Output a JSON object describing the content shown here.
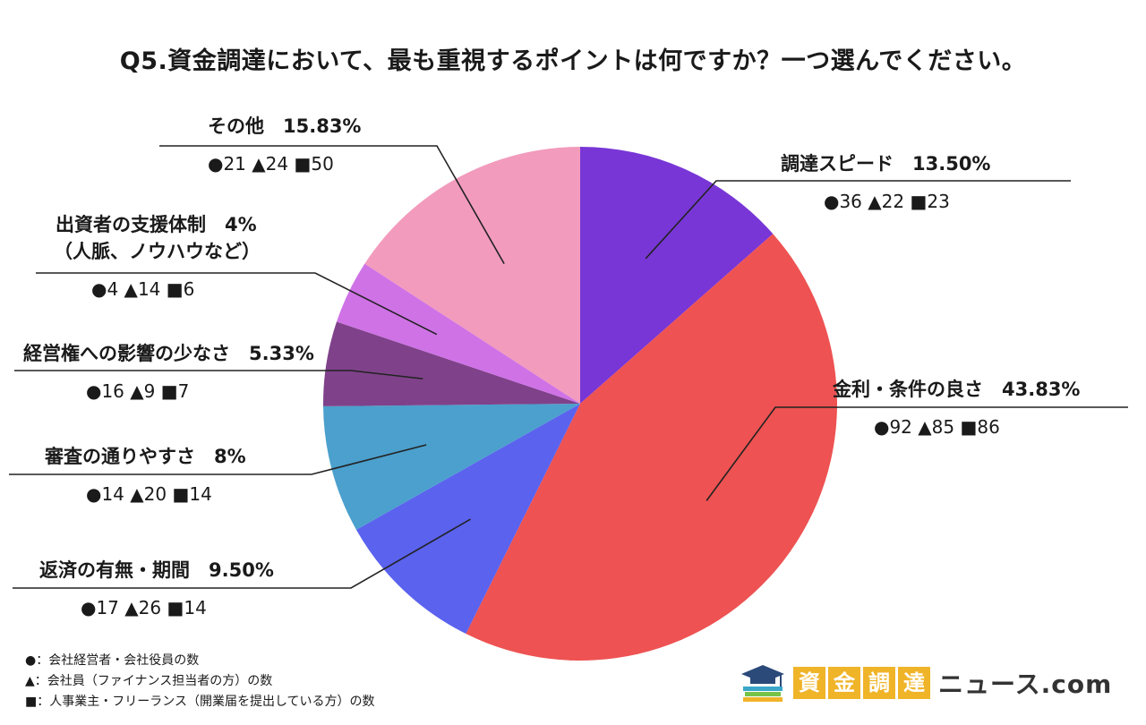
{
  "chart_data": {
    "type": "pie",
    "title": "Q5.資金調達において、最も重視するポイントは何ですか？一つ選んでください。",
    "start_angle": "12 o'clock",
    "direction": "clockwise",
    "slices": [
      {
        "label": "調達スピード",
        "percent_text": "13.50%",
        "value": 13.5,
        "circle": "36",
        "triangle": "22",
        "square": "23",
        "color": "#7836d6"
      },
      {
        "label": "金利・条件の良さ",
        "percent_text": "43.83%",
        "value": 43.83,
        "circle": "92",
        "triangle": "85",
        "square": "86",
        "color": "#ee5252"
      },
      {
        "label": "返済の有無・期間",
        "percent_text": "9.50%",
        "value": 9.5,
        "circle": "17",
        "triangle": "26",
        "square": "14",
        "color": "#5a62ee"
      },
      {
        "label": "審査の通りやすさ",
        "percent_text": "8%",
        "value": 8,
        "circle": "14",
        "triangle": "20",
        "square": "14",
        "color": "#4ba0cd"
      },
      {
        "label": "経営権への影響の少なさ",
        "percent_text": "5.33%",
        "value": 5.33,
        "circle": "16",
        "triangle": "9",
        "square": "7",
        "color": "#7f428a"
      },
      {
        "label": "出資者の支援体制",
        "label_line2": "（人脈、ノウハウなど）",
        "percent_text": "4%",
        "value": 4,
        "circle": "4",
        "triangle": "14",
        "square": "6",
        "color": "#cf72e6"
      },
      {
        "label": "その他",
        "percent_text": "15.83%",
        "value": 15.83,
        "circle": "21",
        "triangle": "24",
        "square": "50",
        "color": "#f29bbd"
      }
    ]
  },
  "legend": {
    "circle": "●：会社経営者・会社役員の数",
    "triangle": "▲：会社員（ファイナンス担当者の方）の数",
    "square": "■：人事業主・フリーランス（開業届を提出している方）の数"
  },
  "logo": {
    "chars": [
      "資",
      "金",
      "調",
      "達"
    ],
    "suffix": "ニュース.com"
  }
}
